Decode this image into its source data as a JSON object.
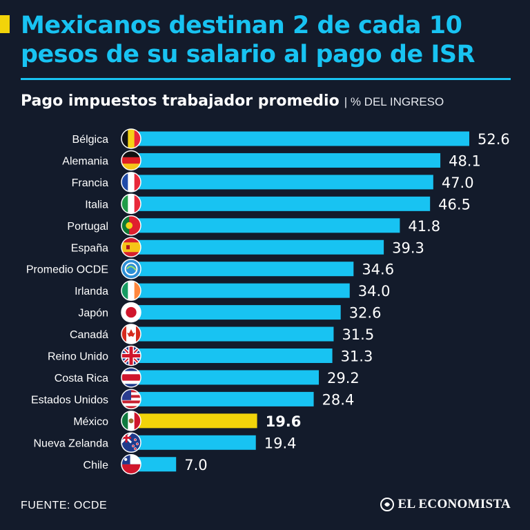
{
  "header": {
    "title": "Mexicanos destinan 2 de cada 10 pesos de su salario al pago de ISR",
    "subtitle_main": "Pago impuestos trabajador promedio",
    "subtitle_unit": "| % DEL INGRESO"
  },
  "footer": {
    "source": "FUENTE: OCDE",
    "brand": "EL ECONOMISTA"
  },
  "colors": {
    "background": "#131b2b",
    "accent": "#18c3f2",
    "highlight": "#f2d40a",
    "text": "#ffffff"
  },
  "chart_data": {
    "type": "bar",
    "orientation": "horizontal",
    "title": "Pago impuestos trabajador promedio",
    "unit": "% DEL INGRESO",
    "xlim": [
      0,
      55
    ],
    "highlight_category": "México",
    "categories": [
      "Bélgica",
      "Alemania",
      "Francia",
      "Italia",
      "Portugal",
      "España",
      "Promedio OCDE",
      "Irlanda",
      "Japón",
      "Canadá",
      "Reino Unido",
      "Costa Rica",
      "Estados Unidos",
      "México",
      "Nueva Zelanda",
      "Chile"
    ],
    "values": [
      52.6,
      48.1,
      47.0,
      46.5,
      41.8,
      39.3,
      34.6,
      34.0,
      32.6,
      31.5,
      31.3,
      29.2,
      28.4,
      19.6,
      19.4,
      7.0
    ],
    "value_labels": [
      "52.6",
      "48.1",
      "47.0",
      "46.5",
      "41.8",
      "39.3",
      "34.6",
      "34.0",
      "32.6",
      "31.5",
      "31.3",
      "29.2",
      "28.4",
      "19.6",
      "19.4",
      "7.0"
    ],
    "flag_icons": [
      "belgium-flag-icon",
      "germany-flag-icon",
      "france-flag-icon",
      "italy-flag-icon",
      "portugal-flag-icon",
      "spain-flag-icon",
      "oecd-flag-icon",
      "ireland-flag-icon",
      "japan-flag-icon",
      "canada-flag-icon",
      "uk-flag-icon",
      "costa-rica-flag-icon",
      "usa-flag-icon",
      "mexico-flag-icon",
      "new-zealand-flag-icon",
      "chile-flag-icon"
    ]
  }
}
